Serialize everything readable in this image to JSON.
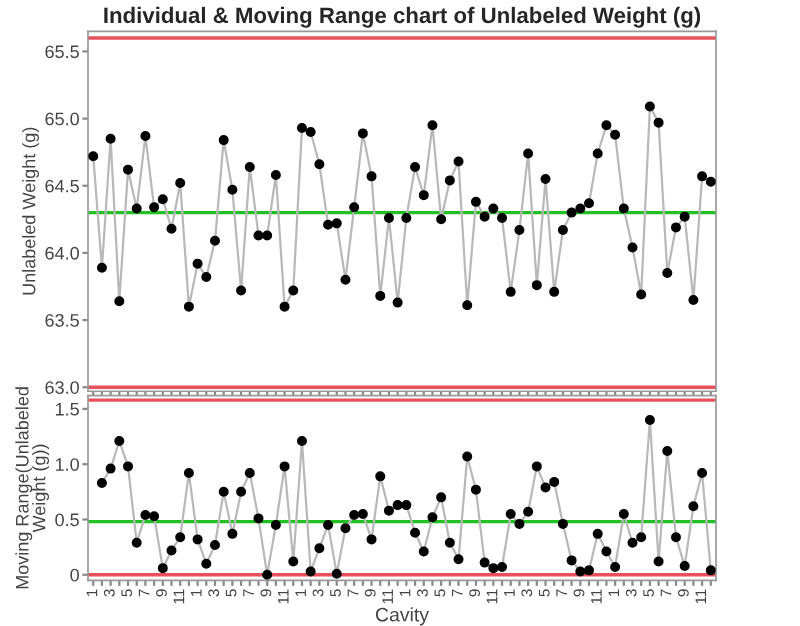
{
  "chart_data": [
    {
      "type": "line",
      "title": "Individual & Moving Range chart of Unlabeled Weight (g)",
      "ylabel": "Unlabeled Weight (g)",
      "categories": [
        "1",
        null,
        "3",
        null,
        "5",
        null,
        "7",
        null,
        "9",
        null,
        "11",
        null,
        "1",
        null,
        "3",
        null,
        "5",
        null,
        "7",
        null,
        "9",
        null,
        "11",
        null,
        "1",
        null,
        "3",
        null,
        "5",
        null,
        "7",
        null,
        "9",
        null,
        "11",
        null,
        "1",
        null,
        "3",
        null,
        "5",
        null,
        "7",
        null,
        "9",
        null,
        "11",
        null,
        "1",
        null,
        "3",
        null,
        "5",
        null,
        "7",
        null,
        "9",
        null,
        "11",
        null,
        "1",
        null,
        "3",
        null,
        "5",
        null,
        "7",
        null,
        "9",
        null,
        "11",
        null
      ],
      "series": [
        {
          "color": "#000000",
          "values": [
            64.72,
            63.89,
            64.85,
            63.64,
            64.62,
            64.33,
            64.87,
            64.34,
            64.4,
            64.18,
            64.52,
            63.6,
            63.92,
            63.82,
            64.09,
            64.84,
            64.47,
            63.72,
            64.64,
            64.13,
            64.13,
            64.58,
            63.6,
            63.72,
            64.93,
            64.9,
            64.66,
            64.21,
            64.22,
            63.8,
            64.34,
            64.89,
            64.57,
            63.68,
            64.26,
            63.63,
            64.26,
            64.64,
            64.43,
            64.95,
            64.25,
            64.54,
            64.68,
            63.61,
            64.38,
            64.27,
            64.33,
            64.26,
            63.71,
            64.17,
            64.74,
            63.76,
            64.55,
            63.71,
            64.17,
            64.3,
            64.33,
            64.37,
            64.74,
            64.95,
            64.88,
            64.33,
            64.04,
            63.69,
            65.09,
            64.97,
            63.85,
            64.19,
            64.27,
            63.65,
            64.57,
            64.53
          ]
        }
      ],
      "ylim": [
        62.97,
        65.65
      ],
      "yticks": [
        {
          "value": 63.0,
          "label": "63.0"
        },
        {
          "value": 63.5,
          "label": "63.5"
        },
        {
          "value": 64.0,
          "label": "64.0"
        },
        {
          "value": 64.5,
          "label": "64.5"
        },
        {
          "value": 65.0,
          "label": "65.0"
        },
        {
          "value": 65.5,
          "label": "65.5"
        }
      ],
      "ref_lines": [
        {
          "axis": "y",
          "value": 65.6,
          "color": "#e8505b"
        },
        {
          "axis": "y",
          "value": 64.3,
          "color": "#22c022"
        },
        {
          "axis": "y",
          "value": 63.0,
          "color": "#e8505b"
        }
      ],
      "marker": "circle",
      "grid": false,
      "tick_labels": "y"
    },
    {
      "type": "line",
      "ylabel": "Moving Range(Unlabeled Weight (g))",
      "xlabel": "Cavity",
      "categories": [
        "1",
        null,
        "3",
        null,
        "5",
        null,
        "7",
        null,
        "9",
        null,
        "11",
        null,
        "1",
        null,
        "3",
        null,
        "5",
        null,
        "7",
        null,
        "9",
        null,
        "11",
        null,
        "1",
        null,
        "3",
        null,
        "5",
        null,
        "7",
        null,
        "9",
        null,
        "11",
        null,
        "1",
        null,
        "3",
        null,
        "5",
        null,
        "7",
        null,
        "9",
        null,
        "11",
        null,
        "1",
        null,
        "3",
        null,
        "5",
        null,
        "7",
        null,
        "9",
        null,
        "11",
        null,
        "1",
        null,
        "3",
        null,
        "5",
        null,
        "7",
        null,
        "9",
        null,
        "11",
        null
      ],
      "series": [
        {
          "color": "#000000",
          "values": [
            null,
            0.83,
            0.96,
            1.21,
            0.98,
            0.29,
            0.54,
            0.53,
            0.06,
            0.22,
            0.34,
            0.92,
            0.32,
            0.1,
            0.27,
            0.75,
            0.37,
            0.75,
            0.92,
            0.51,
            0.0,
            0.45,
            0.98,
            0.12,
            1.21,
            0.03,
            0.24,
            0.45,
            0.01,
            0.42,
            0.54,
            0.55,
            0.32,
            0.89,
            0.58,
            0.63,
            0.63,
            0.38,
            0.21,
            0.52,
            0.7,
            0.29,
            0.14,
            1.07,
            0.77,
            0.11,
            0.06,
            0.07,
            0.55,
            0.46,
            0.57,
            0.98,
            0.79,
            0.84,
            0.46,
            0.13,
            0.03,
            0.04,
            0.37,
            0.21,
            0.07,
            0.55,
            0.29,
            0.34,
            1.4,
            0.12,
            1.12,
            0.34,
            0.08,
            0.62,
            0.92,
            0.04
          ]
        }
      ],
      "ylim": [
        -0.05,
        1.62
      ],
      "yticks": [
        0,
        {
          "value": 0.5,
          "label": "0.5"
        },
        {
          "value": 1.0,
          "label": "1.0"
        },
        {
          "value": 1.5,
          "label": "1.5"
        }
      ],
      "ref_lines": [
        {
          "axis": "y",
          "value": 1.58,
          "color": "#e8505b"
        },
        {
          "axis": "y",
          "value": 0.48,
          "color": "#22c022"
        },
        {
          "axis": "y",
          "value": 0,
          "color": "#e8505b"
        }
      ],
      "marker": "circle",
      "grid": false
    }
  ]
}
